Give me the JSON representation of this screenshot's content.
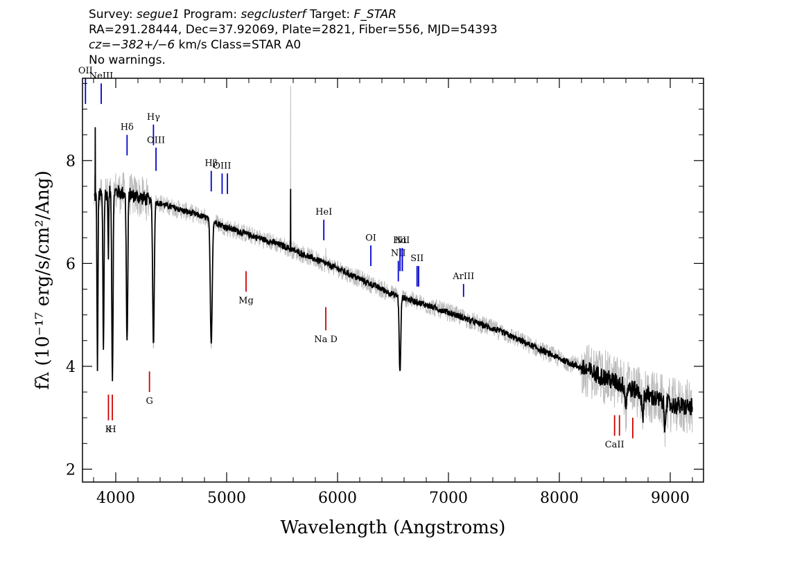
{
  "header": {
    "survey_label": "Survey:",
    "survey_value": "segue1",
    "program_label": "Program:",
    "program_value": "segclusterf",
    "target_label": "Target:",
    "target_value": "F_STAR",
    "line2": "RA=291.28444, Dec=37.92069, Plate=2821, Fiber=556, MJD=54393",
    "cz_label": "cz=",
    "cz_value": "−382+/−6",
    "cz_rest": " km/s Class=STAR A0",
    "line4": "No warnings."
  },
  "chart_data": {
    "type": "line",
    "xlabel": "Wavelength (Angstroms)",
    "ylabel": "fλ (10⁻¹⁷ erg/s/cm²/Ang)",
    "xlim": [
      3700,
      9300
    ],
    "ylim": [
      1.75,
      9.6
    ],
    "x_ticks": [
      4000,
      5000,
      6000,
      7000,
      8000,
      9000
    ],
    "y_ticks": [
      2,
      4,
      6,
      8
    ],
    "colors": {
      "flux": "#000000",
      "error": "#bbbbbb",
      "emission": "#0000cc",
      "absorption": "#cc0000"
    },
    "continuum": [
      [
        3800,
        7.3
      ],
      [
        4000,
        7.4
      ],
      [
        4200,
        7.3
      ],
      [
        4500,
        7.1
      ],
      [
        4800,
        6.9
      ],
      [
        5000,
        6.7
      ],
      [
        5500,
        6.35
      ],
      [
        6000,
        5.9
      ],
      [
        6500,
        5.4
      ],
      [
        7000,
        5.05
      ],
      [
        7500,
        4.65
      ],
      [
        8000,
        4.15
      ],
      [
        8500,
        3.7
      ],
      [
        9000,
        3.25
      ],
      [
        9200,
        3.2
      ]
    ],
    "absorption_features": [
      {
        "center": 3835,
        "depth": 3.3,
        "width": 6
      },
      {
        "center": 3889,
        "depth": 3.0,
        "width": 7
      },
      {
        "center": 3933,
        "depth": 1.2,
        "width": 5
      },
      {
        "center": 3970,
        "depth": 3.6,
        "width": 8
      },
      {
        "center": 4102,
        "depth": 2.9,
        "width": 9
      },
      {
        "center": 4340,
        "depth": 2.8,
        "width": 10
      },
      {
        "center": 4861,
        "depth": 2.4,
        "width": 12
      },
      {
        "center": 6563,
        "depth": 1.5,
        "width": 10
      },
      {
        "center": 8600,
        "depth": 0.4,
        "width": 10
      },
      {
        "center": 8750,
        "depth": 0.5,
        "width": 10
      },
      {
        "center": 8950,
        "depth": 0.5,
        "width": 8
      }
    ],
    "spikes": [
      {
        "x": 3815,
        "y": 8.65,
        "error_y": 8.2
      },
      {
        "x": 5577,
        "y": 7.45,
        "error_y": 9.45
      },
      {
        "x": 5893,
        "y": 6.0,
        "error_y": 6.3
      }
    ],
    "emission_lines": [
      {
        "label": "OII",
        "x": 3727,
        "y_bottom": 9.1,
        "y_top": 9.6
      },
      {
        "label": "NeIII",
        "x": 3869,
        "y_bottom": 9.1,
        "y_top": 9.5
      },
      {
        "label": "Hδ",
        "x": 4102,
        "y_bottom": 8.1,
        "y_top": 8.5
      },
      {
        "label": "Hγ",
        "x": 4340,
        "y_bottom": 8.3,
        "y_top": 8.7
      },
      {
        "label": "OIII",
        "x": 4363,
        "y_bottom": 7.8,
        "y_top": 8.25
      },
      {
        "label": "Hβ",
        "x": 4861,
        "y_bottom": 7.4,
        "y_top": 7.8
      },
      {
        "label": "OIII",
        "x": 4959,
        "y_bottom": 7.35,
        "y_top": 7.75
      },
      {
        "label": "",
        "x": 5007,
        "y_bottom": 7.35,
        "y_top": 7.75
      },
      {
        "label": "HeI",
        "x": 5876,
        "y_bottom": 6.45,
        "y_top": 6.85
      },
      {
        "label": "OI",
        "x": 6300,
        "y_bottom": 5.95,
        "y_top": 6.35
      },
      {
        "label": "NII",
        "x": 6548,
        "y_bottom": 5.65,
        "y_top": 6.05
      },
      {
        "label": "Hα",
        "x": 6563,
        "y_bottom": 5.85,
        "y_top": 6.3
      },
      {
        "label": "",
        "x": 6583,
        "y_bottom": 5.85,
        "y_top": 6.3
      },
      {
        "label": "NII",
        "x": 6584,
        "y_bottom": 5.85,
        "y_top": 6.3
      },
      {
        "label": "SII",
        "x": 6717,
        "y_bottom": 5.55,
        "y_top": 5.95
      },
      {
        "label": "",
        "x": 6731,
        "y_bottom": 5.55,
        "y_top": 5.95
      },
      {
        "label": "ArIII",
        "x": 7136,
        "y_bottom": 5.35,
        "y_top": 5.6
      }
    ],
    "absorption_lines": [
      {
        "label": "Mg",
        "x": 5175,
        "y_bottom": 5.45,
        "y_top": 5.85
      },
      {
        "label": "Na D",
        "x": 5894,
        "y_bottom": 4.7,
        "y_top": 5.15
      },
      {
        "label": "G",
        "x": 4304,
        "y_bottom": 3.5,
        "y_top": 3.9
      },
      {
        "label": "K",
        "x": 3934,
        "y_bottom": 2.95,
        "y_top": 3.45
      },
      {
        "label": "H",
        "x": 3969,
        "y_bottom": 2.95,
        "y_top": 3.45
      },
      {
        "label": "CaII",
        "x": 8498,
        "y_bottom": 2.65,
        "y_top": 3.05
      },
      {
        "label": "",
        "x": 8542,
        "y_bottom": 2.65,
        "y_top": 3.05
      },
      {
        "label": "",
        "x": 8662,
        "y_bottom": 2.6,
        "y_top": 3.0
      }
    ]
  }
}
